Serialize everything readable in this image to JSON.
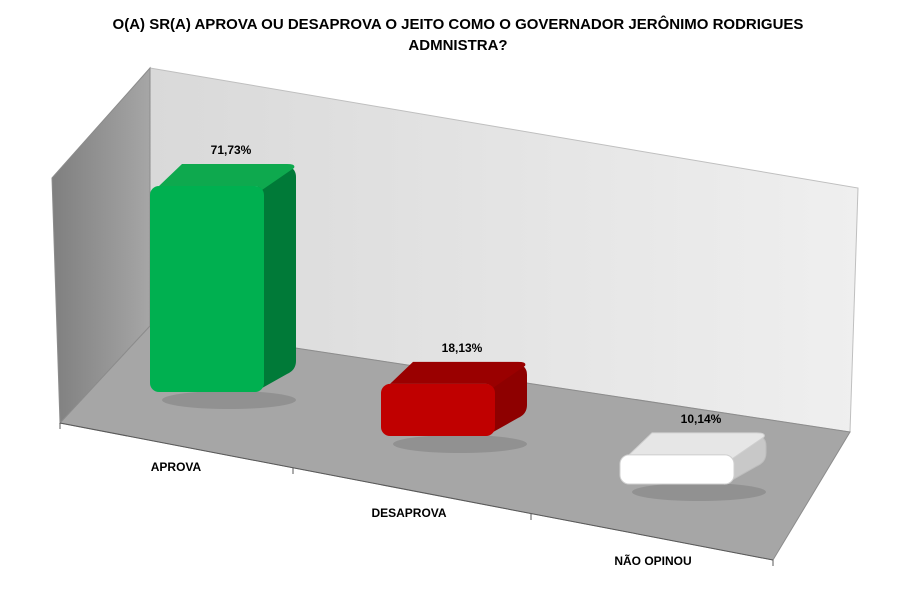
{
  "chart_data": {
    "type": "bar",
    "title": "O(A) SR(A) APROVA OU DESAPROVA O JEITO COMO O GOVERNADOR JERÔNIMO RODRIGUES ADMNISTRA?",
    "title_lines": [
      "O(A) SR(A) APROVA OU DESAPROVA O JEITO COMO O GOVERNADOR JERÔNIMO RODRIGUES",
      "ADMNISTRA?"
    ],
    "categories": [
      "APROVA",
      "DESAPROVA",
      "NÃO OPINOU"
    ],
    "values": [
      71.73,
      18.13,
      10.14
    ],
    "data_labels": [
      "71,73%",
      "18,13%",
      "10,14%"
    ],
    "colors": [
      "#00b050",
      "#c00000",
      "#ffffff"
    ],
    "side_colors": [
      "#007a38",
      "#8e0000",
      "#c8c8c8"
    ],
    "top_colors": [
      "#0ea94e",
      "#9a0000",
      "#e6e6e6"
    ],
    "style": "3d-perspective",
    "legend": "none",
    "grid": false
  }
}
